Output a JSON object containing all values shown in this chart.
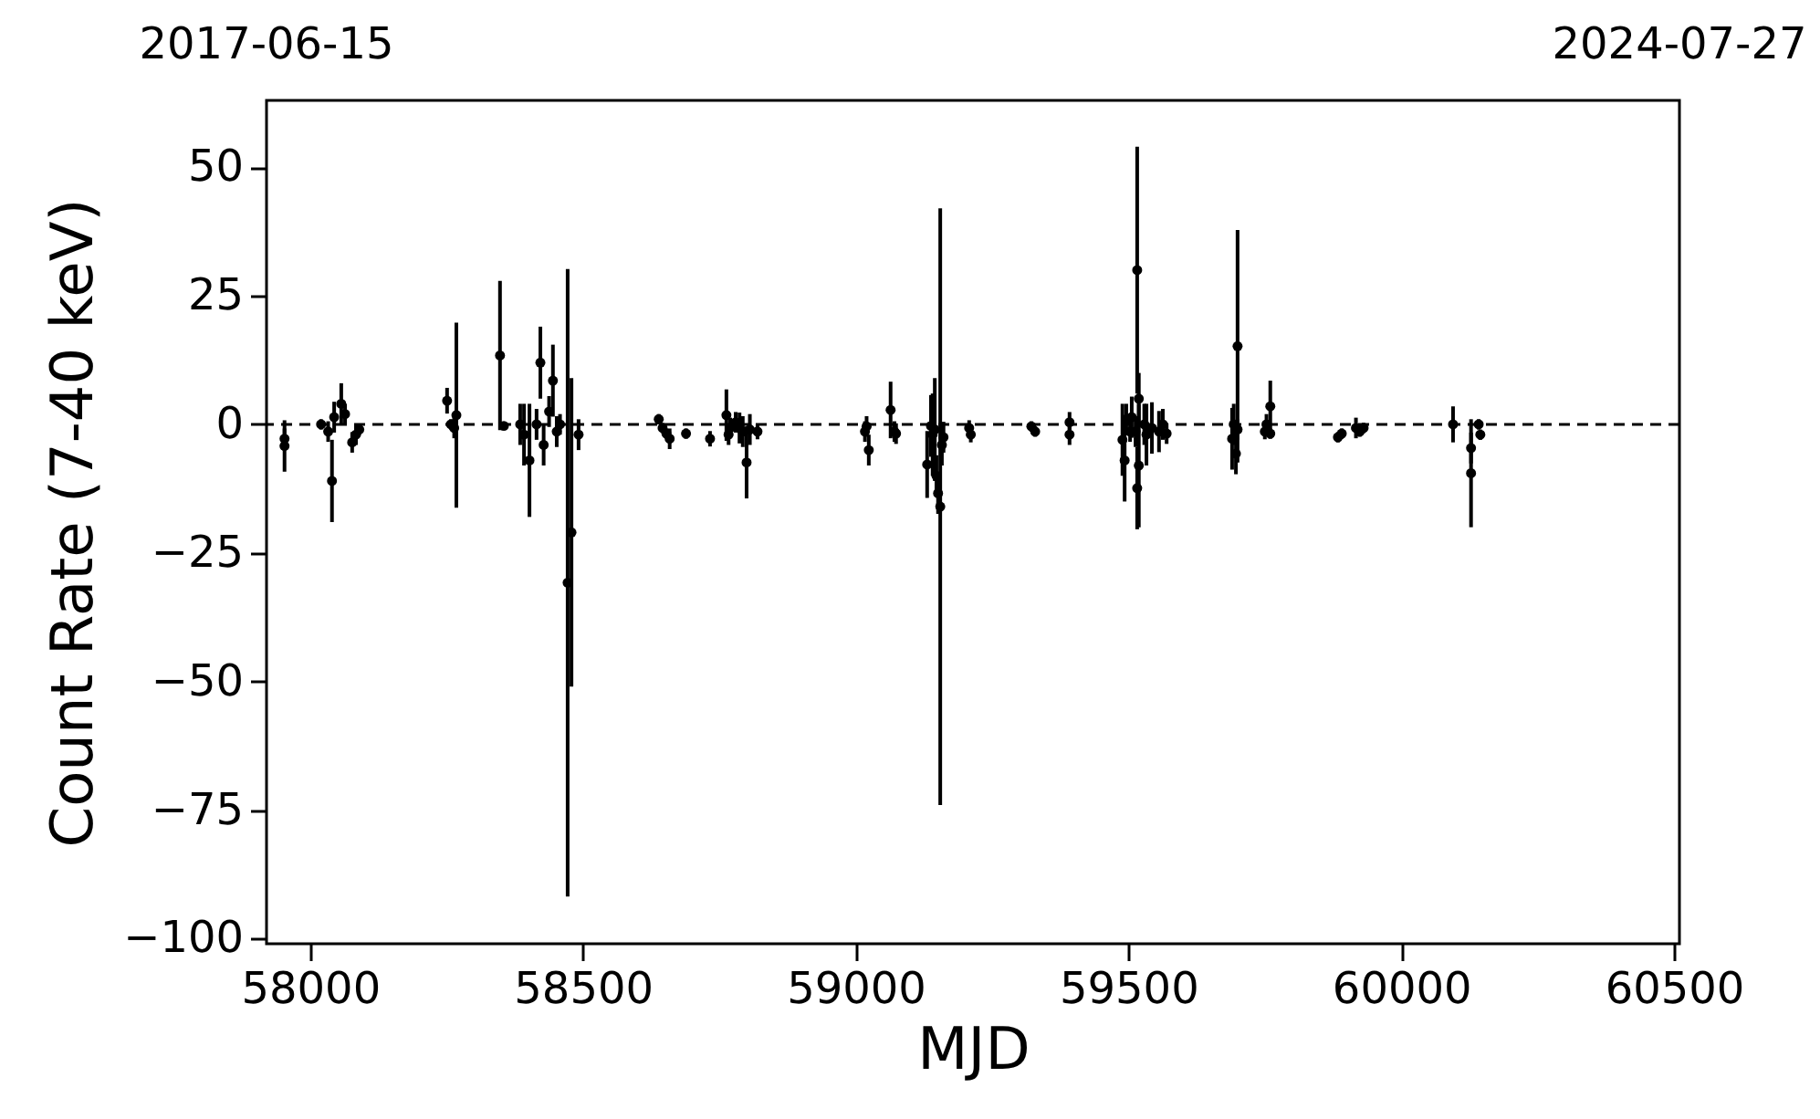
{
  "chart_data": {
    "type": "scatter",
    "xlabel": "MJD",
    "ylabel": "Count Rate (7-40 keV)",
    "annotations": [
      "2017-06-15",
      "2024-07-27"
    ],
    "xlim": [
      57920,
      60510
    ],
    "xticks": [
      58000,
      58500,
      59000,
      59500,
      60000,
      60500
    ],
    "ylim": [
      -101,
      63
    ],
    "yticks": [
      {
        "value": -100,
        "label": "−100"
      },
      {
        "value": -75,
        "label": "−75"
      },
      {
        "value": -50,
        "label": "−50"
      },
      {
        "value": -25,
        "label": "−25"
      },
      0,
      25,
      50
    ],
    "grid": false,
    "marker": "circle",
    "ref_lines": [
      {
        "axis": "y",
        "value": 0,
        "label": null,
        "color": "#000000",
        "line_style": "dashed"
      }
    ],
    "series": [
      {
        "color": "#000000",
        "x": [
          57953,
          57953,
          58020,
          58033,
          58040,
          58044,
          58057,
          58064,
          58077,
          58084,
          58090,
          58251,
          58258,
          58264,
          58268,
          58348,
          58355,
          58385,
          58392,
          58402,
          58415,
          58422,
          58428,
          58438,
          58445,
          58452,
          58458,
          58472,
          58479,
          58492,
          58639,
          58646,
          58653,
          58659,
          58689,
          58733,
          58763,
          58767,
          58770,
          58780,
          58787,
          58793,
          58800,
          58806,
          58820,
          59017,
          59020,
          59024,
          59064,
          59071,
          59074,
          59131,
          59138,
          59141,
          59145,
          59148,
          59151,
          59155,
          59158,
          59161,
          59208,
          59211,
          59322,
          59329,
          59392,
          59392,
          59489,
          59493,
          59496,
          59503,
          59506,
          59513,
          59516,
          59516,
          59519,
          59519,
          59529,
          59533,
          59543,
          59556,
          59563,
          59570,
          59690,
          59693,
          59697,
          59700,
          59700,
          59750,
          59753,
          59760,
          59760,
          59884,
          59891,
          59917,
          59924,
          59931,
          60095,
          60128,
          60128,
          60142,
          60145
        ],
        "values": [
          -2.8,
          -4.2,
          0,
          -1.4,
          -11,
          1.4,
          4,
          2,
          -3.5,
          -2,
          -1,
          4.6,
          0,
          -0.7,
          1.8,
          13.4,
          -0.3,
          0,
          -2,
          -7,
          0,
          12,
          -4,
          2.5,
          8.5,
          -1.4,
          0,
          -30.8,
          -21,
          -2,
          1,
          -0.7,
          -1.8,
          -2.8,
          -1.8,
          -2.8,
          1.8,
          -2,
          -0.7,
          0.4,
          -0.7,
          -1.4,
          -7.4,
          -1,
          -1.4,
          -1.4,
          -0.4,
          -5,
          2.8,
          -1.4,
          -1.8,
          -7.8,
          -0.3,
          -2,
          -1,
          -10,
          -13.4,
          -16,
          -4,
          -2.5,
          -0.7,
          -2,
          -0.4,
          -1.4,
          0.4,
          -2,
          -3,
          -7,
          1,
          -1.4,
          1.4,
          -1.4,
          30,
          -12.4,
          -8,
          5,
          0,
          -2,
          -0.7,
          -1.4,
          0,
          -1.8,
          -2.8,
          0,
          -5.7,
          15.2,
          -1,
          -1.4,
          0,
          3.5,
          -1.8,
          -2.5,
          -1.8,
          -0.7,
          -1.4,
          -0.7,
          0,
          -4.6,
          -9.5,
          0,
          -2
        ],
        "errors": [
          2,
          5,
          1,
          2,
          8,
          3,
          4,
          2,
          2,
          2,
          1,
          2.5,
          1,
          2,
          18,
          14.5,
          0.5,
          4,
          6,
          11,
          3,
          7,
          4,
          3,
          7,
          3,
          2,
          61,
          30,
          3,
          1,
          1,
          1,
          2,
          1,
          1.5,
          5,
          2,
          2,
          2,
          3,
          3,
          7,
          3,
          1.5,
          2,
          2,
          3,
          5.5,
          2,
          2,
          6.5,
          6,
          8,
          10,
          4,
          4,
          58,
          4,
          3,
          1.5,
          1.5,
          1,
          1,
          2,
          2,
          7,
          8,
          3,
          2,
          4,
          3,
          24,
          8,
          12,
          5,
          4,
          6,
          5,
          4,
          3,
          2,
          6,
          4,
          4,
          22.6,
          2,
          1.5,
          2,
          5,
          1,
          1,
          1,
          2,
          1,
          1,
          3.5,
          3,
          10.5,
          1,
          1
        ]
      }
    ]
  }
}
